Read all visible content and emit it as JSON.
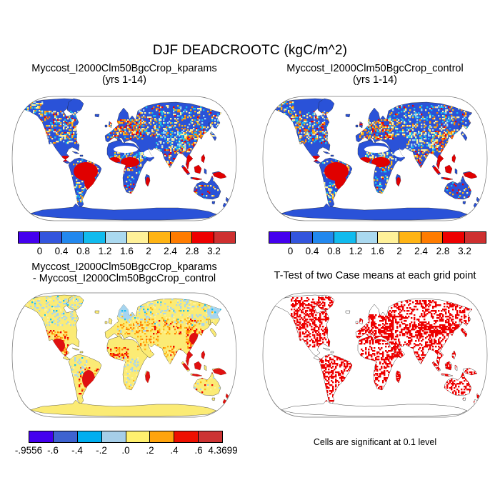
{
  "title": "DJF DEADCROOTC (kgC/m^2)",
  "panels": {
    "top_left": {
      "title_line1": "Myccost_I2000Clm50BgcCrop_kparams",
      "title_line2": "(yrs 1-14)"
    },
    "top_right": {
      "title_line1": "Myccost_I2000Clm50BgcCrop_control",
      "title_line2": "(yrs 1-14)"
    },
    "bottom_left": {
      "title_line1": "Myccost_I2000Clm50BgcCrop_kparams",
      "title_line2": "- Myccost_I2000Clm50BgcCrop_control"
    },
    "bottom_right": {
      "title": "T-Test of two Case means at each grid point",
      "caption": "Cells are significant at 0.1 level"
    }
  },
  "colorbars": {
    "mean": {
      "colors": [
        "#4400EE",
        "#3355DD",
        "#2288EE",
        "#11BBEE",
        "#AAD9F0",
        "#FFF199",
        "#FFB414",
        "#FF7C00",
        "#EE0000",
        "#CE3030"
      ],
      "labels": [
        "0",
        "0.4",
        "0.8",
        "1.2",
        "1.6",
        "2",
        "2.4",
        "2.8",
        "3.2"
      ]
    },
    "diff": {
      "colors": [
        "#4400EE",
        "#3E63D0",
        "#00AEEF",
        "#A6CEE8",
        "#FFF06E",
        "#FFA40D",
        "#EE1000",
        "#CC3333"
      ],
      "labels": [
        "-.9556",
        "-.6",
        "-.4",
        "-.2",
        ".0",
        ".2",
        ".4",
        ".6",
        "4.3699"
      ]
    }
  },
  "chart_data": [
    {
      "type": "map",
      "panel": "top_left",
      "title": "Myccost_I2000Clm50BgcCrop_kparams (yrs 1-14)",
      "variable": "DEADCROOTC",
      "units": "kgC/m^2",
      "season": "DJF",
      "projection": "robinson-like oval",
      "levels": [
        0,
        0.4,
        0.8,
        1.2,
        1.6,
        2,
        2.4,
        2.8,
        3.2
      ],
      "palette": [
        "#4400EE",
        "#3355DD",
        "#2288EE",
        "#11BBEE",
        "#AAD9F0",
        "#FFF199",
        "#FFB414",
        "#FF7C00",
        "#EE0000",
        "#CE3030"
      ],
      "base_land_color": "#2A52D8",
      "ocean_color": "#FFFFFF",
      "high_value_regions": [
        "Amazon basin",
        "southeast Brazil",
        "Congo basin",
        "West Africa coast",
        "Southeast Asia",
        "Indonesia",
        "New Guinea",
        "Central America",
        "Madagascar"
      ],
      "mixed_value_regions": [
        "southern Canada",
        "northern USA",
        "Europe",
        "southern Siberia",
        "northeast China",
        "India"
      ],
      "low_value_regions": [
        "most boreal land",
        "Sahara margins",
        "Australia interior",
        "Antarctica"
      ]
    },
    {
      "type": "map",
      "panel": "top_right",
      "title": "Myccost_I2000Clm50BgcCrop_control (yrs 1-14)",
      "variable": "DEADCROOTC",
      "units": "kgC/m^2",
      "season": "DJF",
      "projection": "robinson-like oval",
      "levels": [
        0,
        0.4,
        0.8,
        1.2,
        1.6,
        2,
        2.4,
        2.8,
        3.2
      ],
      "palette": [
        "#4400EE",
        "#3355DD",
        "#2288EE",
        "#11BBEE",
        "#AAD9F0",
        "#FFF199",
        "#FFB414",
        "#FF7C00",
        "#EE0000",
        "#CE3030"
      ],
      "base_land_color": "#2A52D8",
      "ocean_color": "#FFFFFF",
      "high_value_regions": [
        "Amazon basin",
        "southeast Brazil",
        "Congo basin",
        "West Africa coast",
        "Southeast Asia",
        "Indonesia",
        "New Guinea",
        "Central America",
        "Madagascar"
      ],
      "mixed_value_regions": [
        "southern Canada",
        "northern USA",
        "Europe",
        "southern Siberia",
        "northeast China",
        "India"
      ],
      "low_value_regions": [
        "most boreal land",
        "Sahara margins",
        "Australia interior",
        "Antarctica"
      ]
    },
    {
      "type": "map",
      "panel": "bottom_left",
      "title": "Myccost_I2000Clm50BgcCrop_kparams - Myccost_I2000Clm50BgcCrop_control",
      "variable": "DEADCROOTC difference",
      "units": "kgC/m^2",
      "levels": [
        -0.9556,
        -0.6,
        -0.4,
        -0.2,
        0.0,
        0.2,
        0.4,
        0.6,
        4.3699
      ],
      "palette": [
        "#4400EE",
        "#3E63D0",
        "#00AEEF",
        "#A6CEE8",
        "#FFF06E",
        "#FFA40D",
        "#EE1000",
        "#CC3333"
      ],
      "base_land_color": "#FBEB75",
      "ocean_color": "#FFFFFF",
      "positive_regions": [
        "Mexico / southwest USA",
        "southeast Brazil",
        "West Africa coast",
        "central Asia",
        "east China",
        "Southeast Asia",
        "Indonesia",
        "Madagascar"
      ],
      "negative_regions": [
        "northern Canada",
        "Scandinavia and northwest Russia",
        "Siberia patches",
        "Kamchatka",
        "western Amazon",
        "Congo basin",
        "Tibet"
      ]
    },
    {
      "type": "map",
      "panel": "bottom_right",
      "title": "T-Test of two Case means at each grid point",
      "significance_level": 0.1,
      "significant_color": "#EE0000",
      "base_land_color": "#FFFFFF",
      "ocean_color": "#FFFFFF",
      "significant_regions": [
        "most of North America",
        "Mexico and Central America",
        "most of South America",
        "Europe",
        "Russia",
        "sub-Saharan Africa",
        "North African coast",
        "India",
        "China",
        "Southeast Asia",
        "Indonesia",
        "coastal Australia",
        "Japan",
        "New Zealand",
        "Madagascar"
      ],
      "non_significant_regions": [
        "central Sahara",
        "central Australia",
        "interior Greenland",
        "Antarctica"
      ]
    }
  ]
}
